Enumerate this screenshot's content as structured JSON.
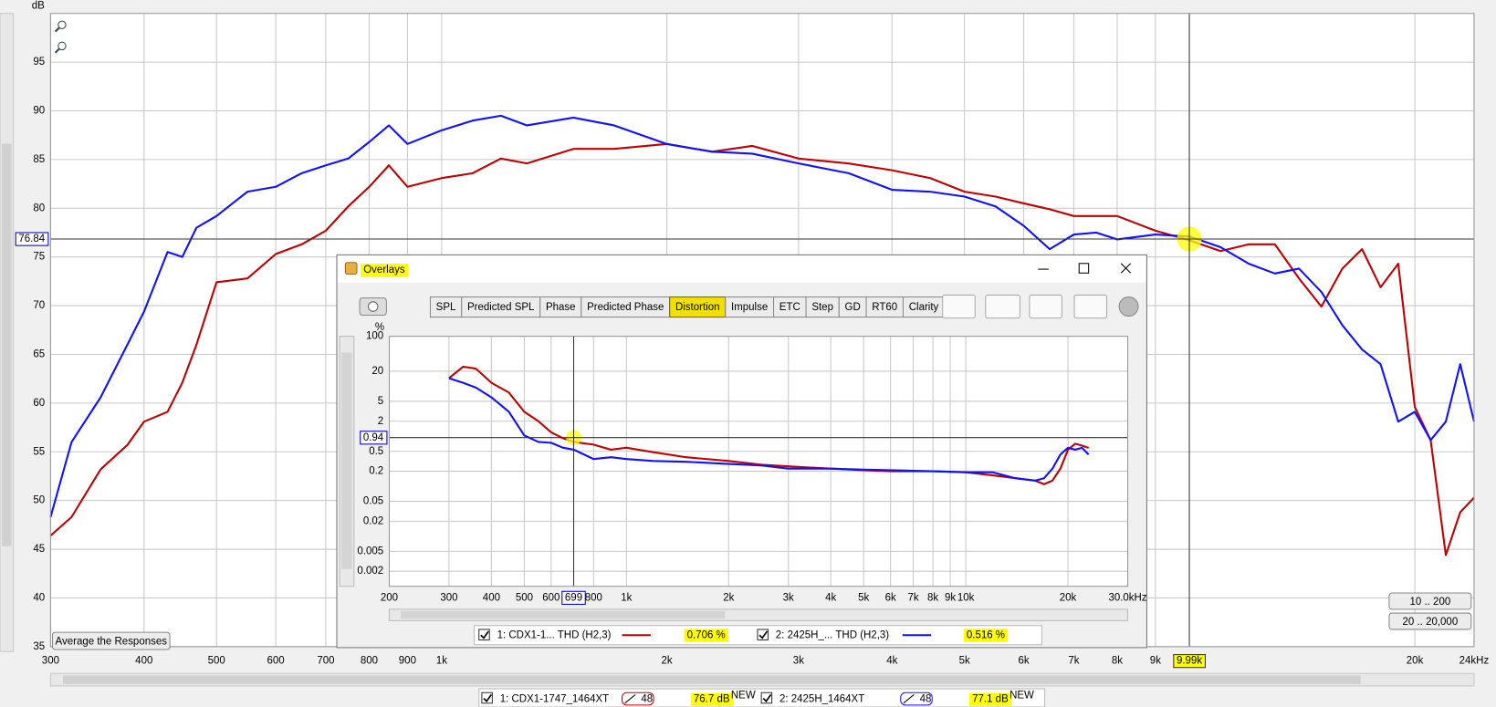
{
  "chart_data": [
    {
      "type": "line",
      "y_label": "dB",
      "xscale": "log",
      "grid": true,
      "xlim": [
        300,
        24000
      ],
      "ylim": [
        35,
        100
      ],
      "xticks": [
        300,
        400,
        500,
        600,
        700,
        800,
        900,
        {
          "value": 1000,
          "label": "1k"
        },
        {
          "value": 2000,
          "label": "2k"
        },
        {
          "value": 3000,
          "label": "3k"
        },
        {
          "value": 4000,
          "label": "4k"
        },
        {
          "value": 5000,
          "label": "5k"
        },
        {
          "value": 6000,
          "label": "6k"
        },
        {
          "value": 7000,
          "label": "7k"
        },
        {
          "value": 8000,
          "label": "8k"
        },
        {
          "value": 9000,
          "label": "9k"
        },
        {
          "value": 20000,
          "label": "20k"
        },
        {
          "value": 24000,
          "label": "24kHz"
        }
      ],
      "yticks": [
        35,
        40,
        45,
        50,
        55,
        60,
        65,
        70,
        75,
        80,
        85,
        90,
        95
      ],
      "cursor": {
        "x": {
          "value": 9990,
          "label": "9.99k"
        },
        "y": 76.84
      },
      "x": [
        300,
        320,
        350,
        380,
        400,
        430,
        450,
        470,
        500,
        550,
        600,
        650,
        700,
        750,
        800,
        850,
        900,
        1000,
        1100,
        1200,
        1300,
        1500,
        1700,
        2000,
        2300,
        2600,
        3000,
        3500,
        4000,
        4500,
        5000,
        5500,
        6000,
        6500,
        7000,
        7500,
        8000,
        9000,
        10000,
        11000,
        12000,
        13000,
        14000,
        15000,
        16000,
        17000,
        18000,
        19000,
        20000,
        21000,
        22000,
        23000,
        24000
      ],
      "series": [
        {
          "name": "1: CDX1-1747_1464XT",
          "color": "#c00000",
          "values": [
            46.4,
            48.3,
            53.2,
            55.7,
            58.1,
            59.1,
            62.1,
            66,
            72.4,
            72.8,
            75.3,
            76.3,
            77.7,
            80.2,
            82.2,
            84.4,
            82.2,
            83.1,
            83.6,
            85.1,
            84.6,
            86.1,
            86.1,
            86.6,
            85.8,
            86.4,
            85.1,
            84.6,
            83.9,
            83.1,
            81.7,
            81.2,
            80.5,
            79.9,
            79.2,
            79.2,
            79.2,
            77.7,
            76.7,
            75.6,
            76.3,
            76.3,
            72.8,
            69.9,
            73.8,
            75.8,
            71.9,
            74.3,
            59.6,
            56.2,
            44.4,
            48.8,
            50.3
          ]
        },
        {
          "name": "2: 2425H_1464XT",
          "color": "#1010ff",
          "values": [
            48.3,
            56,
            60.6,
            66,
            69.4,
            75.5,
            75,
            78,
            79.2,
            81.7,
            82.2,
            83.6,
            84.4,
            85.1,
            86.8,
            88.5,
            86.6,
            88,
            89,
            89.5,
            88.5,
            89.3,
            88.5,
            86.6,
            85.8,
            85.6,
            84.6,
            83.6,
            81.9,
            81.7,
            81.2,
            80.2,
            78.2,
            75.8,
            77.3,
            77.5,
            76.8,
            77.3,
            77.1,
            76,
            74.3,
            73.3,
            73.8,
            71.4,
            68,
            65.5,
            64,
            58.1,
            59.1,
            56.2,
            58.1,
            64,
            58.1
          ]
        }
      ]
    },
    {
      "type": "line",
      "y_label": "%",
      "xscale": "log",
      "yscale": "log",
      "grid": true,
      "xlim": [
        200,
        30000
      ],
      "ylim": [
        0.001,
        100
      ],
      "xticks": [
        200,
        300,
        400,
        500,
        600,
        800,
        {
          "value": 1000,
          "label": "1k"
        },
        {
          "value": 2000,
          "label": "2k"
        },
        {
          "value": 3000,
          "label": "3k"
        },
        {
          "value": 4000,
          "label": "4k"
        },
        {
          "value": 5000,
          "label": "5k"
        },
        {
          "value": 6000,
          "label": "6k"
        },
        {
          "value": 7000,
          "label": "7k"
        },
        {
          "value": 8000,
          "label": "8k"
        },
        {
          "value": 9000,
          "label": "9k"
        },
        {
          "value": 10000,
          "label": "10k"
        },
        {
          "value": 20000,
          "label": "20k"
        },
        {
          "value": 30000,
          "label": "30.0kHz"
        }
      ],
      "yticks": [
        100,
        20,
        5,
        2,
        0.5,
        0.2,
        0.05,
        0.02,
        0.005,
        0.002
      ],
      "cursor": {
        "x": 699,
        "y": 0.94
      },
      "x": [
        300,
        330,
        360,
        400,
        450,
        500,
        550,
        600,
        650,
        700,
        800,
        900,
        1000,
        1200,
        1500,
        2000,
        2500,
        3000,
        4000,
        5000,
        6000,
        8000,
        10000,
        12000,
        14000,
        16000,
        17000,
        18000,
        19000,
        20000,
        21000,
        22000,
        23000
      ],
      "series": [
        {
          "name": "1: CDX1-1... THD (H2,3)",
          "color": "#c00000",
          "values": [
            14.5,
            24.6,
            22.5,
            11.7,
            7.5,
            3.1,
            2.0,
            1.2,
            0.91,
            0.77,
            0.68,
            0.54,
            0.59,
            0.48,
            0.38,
            0.32,
            0.27,
            0.25,
            0.225,
            0.21,
            0.2,
            0.2,
            0.19,
            0.165,
            0.145,
            0.13,
            0.11,
            0.13,
            0.225,
            0.54,
            0.71,
            0.65,
            0.59
          ]
        },
        {
          "name": "2: 2425H_... THD (H2,3)",
          "color": "#1010ff",
          "values": [
            14.5,
            11.7,
            9.4,
            6.0,
            3.1,
            1.04,
            0.77,
            0.74,
            0.59,
            0.54,
            0.35,
            0.38,
            0.35,
            0.32,
            0.31,
            0.28,
            0.26,
            0.225,
            0.225,
            0.215,
            0.21,
            0.2,
            0.19,
            0.19,
            0.145,
            0.13,
            0.145,
            0.225,
            0.43,
            0.59,
            0.54,
            0.59,
            0.43
          ]
        }
      ]
    }
  ],
  "main_legend": [
    {
      "icon": "48",
      "readout": "76.7 dB",
      "badge": "NEW"
    },
    {
      "icon": "48",
      "readout": "77.1 dB",
      "badge": "NEW"
    }
  ],
  "overlays_window": {
    "title": "Overlays",
    "active_tab": "Distortion",
    "tabs": [
      "SPL",
      "Predicted SPL",
      "Phase",
      "Predicted Phase",
      "Distortion",
      "Impulse",
      "ETC",
      "Step",
      "GD",
      "RT60",
      "Clarity"
    ],
    "readouts": [
      "0.706 %",
      "0.516 %"
    ]
  },
  "buttons": {
    "average": "Average the Responses",
    "range_low": "10 .. 200",
    "range_full": "20 .. 20,000"
  }
}
